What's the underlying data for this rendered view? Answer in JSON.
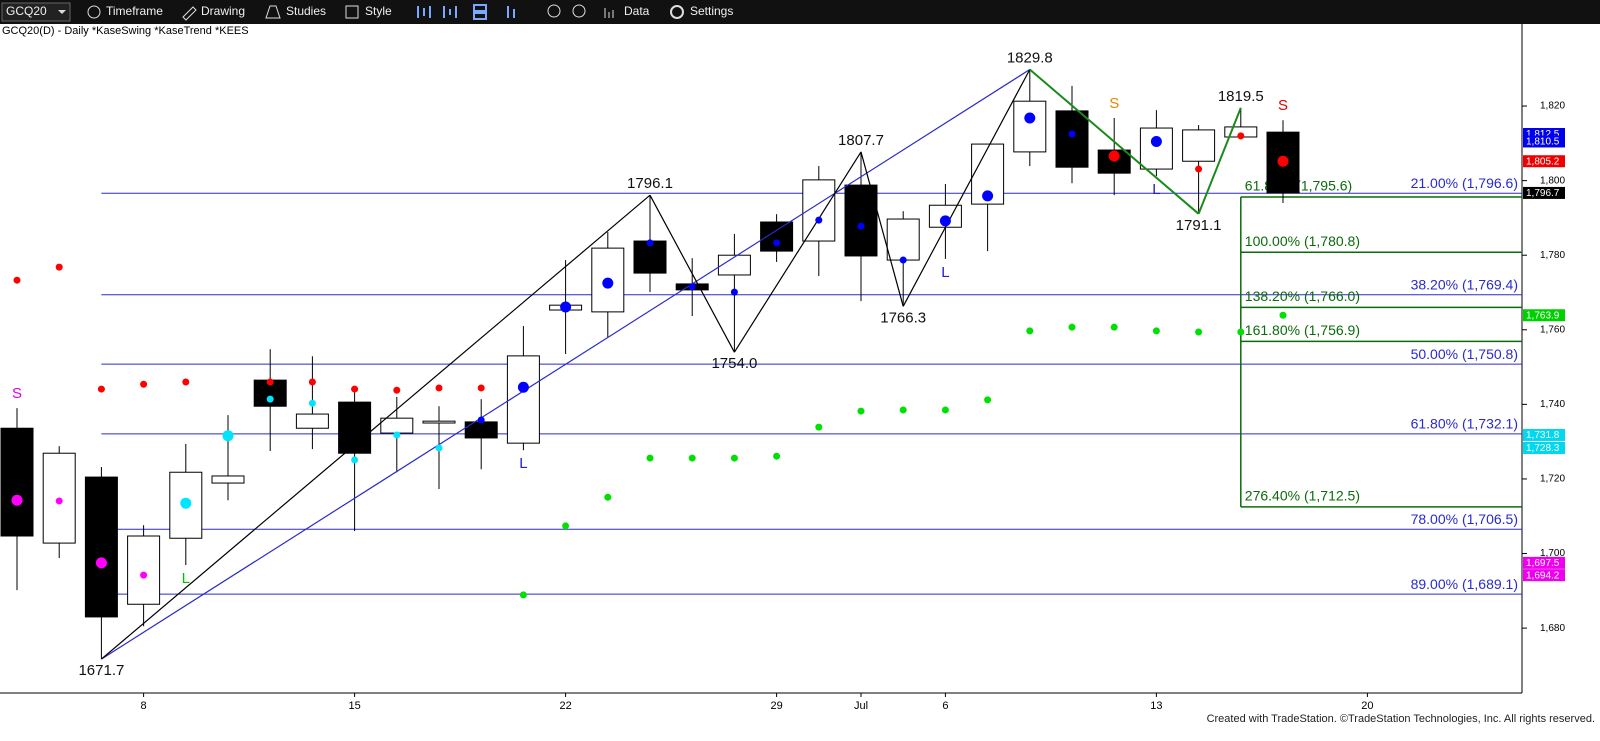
{
  "toolbar": {
    "symbol": "GCQ20",
    "menus": [
      "Timeframe",
      "Drawing",
      "Studies",
      "Style",
      "Data",
      "Settings"
    ]
  },
  "chart_data": {
    "type": "candlestick",
    "title": "GCQ20(D) - Daily  *KaseSwing  *KaseTrend  *KEES",
    "footer": "Created with TradeStation. ©TradeStation Technologies, Inc. All rights reserved.",
    "categories": [
      null,
      null,
      null,
      "8",
      null,
      null,
      null,
      null,
      "15",
      null,
      null,
      null,
      null,
      "22",
      null,
      null,
      null,
      null,
      "29",
      null,
      "Jul",
      null,
      "6",
      null,
      null,
      null,
      null,
      "13",
      null,
      null,
      null,
      null,
      "20"
    ],
    "open": [
      1733.6,
      1702.8,
      1720.5,
      1686.4,
      1704.1,
      1718.9,
      1746.5,
      1733.6,
      1740.6,
      1732.3,
      1735.0,
      1735.3,
      1729.6,
      1765.3,
      1764.8,
      1783.8,
      1772.3,
      1774.7,
      1788.9,
      1783.8,
      1798.8,
      1778.7,
      1787.5,
      1793.7,
      1807.7,
      1818.7,
      1808.2,
      1803.1,
      1805.2,
      1811.7,
      1813.0,
      null,
      null
    ],
    "high": [
      1739.0,
      1728.8,
      1723.2,
      1707.6,
      1729.4,
      1737.1,
      1754.8,
      1752.9,
      1744.9,
      1742.0,
      1739.5,
      1741.4,
      1761.0,
      1778.7,
      1786.2,
      1796.1,
      1779.2,
      1785.7,
      1791.0,
      1803.9,
      1807.7,
      1791.8,
      1799.1,
      1809.8,
      1829.8,
      1825.4,
      1816.8,
      1818.9,
      1814.9,
      1819.5,
      1816.2,
      null,
      null
    ],
    "low": [
      1690.2,
      1698.8,
      1671.7,
      1680.5,
      1696.9,
      1714.3,
      1727.5,
      1728.0,
      1706.0,
      1721.8,
      1717.3,
      1722.6,
      1727.7,
      1753.5,
      1758.0,
      1770.1,
      1763.7,
      1754.0,
      1778.2,
      1774.4,
      1767.7,
      1766.3,
      1779.0,
      1781.1,
      1803.9,
      1799.3,
      1796.1,
      1801.2,
      1791.1,
      1811.1,
      1794.0,
      null,
      null
    ],
    "close": [
      1704.7,
      1726.9,
      1683.0,
      1704.7,
      1721.8,
      1720.8,
      1739.5,
      1737.4,
      1726.9,
      1736.3,
      1735.5,
      1731.0,
      1753.0,
      1766.6,
      1781.9,
      1775.2,
      1770.7,
      1780.0,
      1781.1,
      1800.2,
      1779.8,
      1789.7,
      1793.4,
      1809.8,
      1821.3,
      1803.6,
      1802.0,
      1814.1,
      1813.6,
      1814.4,
      1796.7,
      null,
      null
    ],
    "up_color": "#ffffff",
    "down_color": "#000000",
    "ylim": [
      1662.6,
      1842.0
    ],
    "yticks": [
      {
        "value": 1680,
        "label": "1,680"
      },
      {
        "value": 1700,
        "label": "1,700"
      },
      {
        "value": 1720,
        "label": "1,720"
      },
      {
        "value": 1740,
        "label": "1,740"
      },
      {
        "value": 1760,
        "label": "1,760"
      },
      {
        "value": 1780,
        "label": "1,780"
      },
      {
        "value": 1800,
        "label": "1,800"
      },
      {
        "value": 1820,
        "label": "1,820"
      }
    ],
    "indicators": [
      {
        "color": "#ff0000",
        "marker": "small",
        "values": [
          1773.3,
          1776.8,
          1744.1,
          1745.4,
          1746.0,
          null,
          1746.0,
          1746.0,
          1744.1,
          1743.8,
          1744.4,
          1744.4,
          null,
          null,
          null,
          null,
          null,
          null,
          null,
          null,
          null,
          null,
          null,
          null,
          null,
          null,
          null,
          null,
          1803.1,
          1812.0,
          null,
          null,
          null
        ]
      },
      {
        "color": "#ff0000",
        "marker": "large",
        "values": [
          null,
          null,
          null,
          null,
          null,
          null,
          null,
          null,
          null,
          null,
          null,
          null,
          null,
          null,
          null,
          null,
          null,
          null,
          null,
          null,
          null,
          null,
          null,
          null,
          null,
          null,
          1806.6,
          null,
          null,
          null,
          1805.2,
          null,
          null
        ]
      },
      {
        "color": "#00e5ff",
        "marker": "small",
        "values": [
          null,
          null,
          null,
          null,
          null,
          null,
          1741.4,
          1740.3,
          1725.1,
          1731.8,
          1728.3,
          null,
          null,
          null,
          null,
          null,
          null,
          null,
          null,
          null,
          null,
          null,
          null,
          null,
          null,
          null,
          null,
          null,
          null,
          null,
          null,
          null,
          null
        ]
      },
      {
        "color": "#00e5ff",
        "marker": "large",
        "values": [
          null,
          null,
          null,
          null,
          1713.5,
          1731.6,
          null,
          null,
          null,
          null,
          null,
          null,
          null,
          null,
          null,
          null,
          null,
          null,
          null,
          null,
          null,
          null,
          null,
          null,
          null,
          null,
          null,
          null,
          null,
          null,
          null,
          null,
          null
        ]
      },
      {
        "color": "#ff00ff",
        "marker": "large",
        "values": [
          1714.3,
          null,
          1697.5,
          null,
          null,
          null,
          null,
          null,
          null,
          null,
          null,
          null,
          null,
          null,
          null,
          null,
          null,
          null,
          null,
          null,
          null,
          null,
          null,
          null,
          null,
          null,
          null,
          null,
          null,
          null,
          null,
          null,
          null
        ]
      },
      {
        "color": "#ff00ff",
        "marker": "small",
        "values": [
          null,
          1714.1,
          null,
          1694.2,
          null,
          null,
          null,
          null,
          null,
          null,
          null,
          null,
          null,
          null,
          null,
          null,
          null,
          null,
          null,
          null,
          null,
          null,
          null,
          null,
          null,
          null,
          null,
          null,
          null,
          null,
          null,
          null,
          null
        ]
      },
      {
        "color": "#0000ff",
        "marker": "large",
        "values": [
          null,
          null,
          null,
          null,
          null,
          null,
          null,
          null,
          null,
          null,
          null,
          null,
          1744.6,
          1766.1,
          1772.5,
          null,
          null,
          null,
          null,
          null,
          null,
          null,
          1789.2,
          1795.9,
          1816.8,
          null,
          null,
          1810.5,
          null,
          null,
          null,
          null,
          null
        ]
      },
      {
        "color": "#0000ff",
        "marker": "small",
        "values": [
          null,
          null,
          null,
          null,
          null,
          null,
          null,
          null,
          null,
          null,
          null,
          1735.8,
          null,
          null,
          null,
          1783.3,
          1771.5,
          1770.1,
          1783.3,
          1789.4,
          1787.8,
          1778.7,
          null,
          null,
          null,
          1812.5,
          null,
          null,
          null,
          null,
          null,
          null,
          null
        ]
      },
      {
        "color": "#00e000",
        "marker": "small",
        "values": [
          null,
          null,
          null,
          null,
          null,
          null,
          null,
          null,
          null,
          null,
          null,
          null,
          1688.9,
          1707.4,
          1715.1,
          1725.6,
          1725.6,
          1725.6,
          1726.1,
          1733.9,
          1738.2,
          1738.5,
          1738.5,
          1741.2,
          1759.7,
          1760.7,
          1760.7,
          1759.7,
          1759.4,
          1759.4,
          1763.9,
          null,
          null
        ]
      }
    ],
    "trendline": {
      "color": "#2a2acc",
      "values": [
        null,
        null,
        1671.7,
        null,
        null,
        null,
        null,
        null,
        null,
        null,
        null,
        null,
        null,
        null,
        null,
        null,
        null,
        null,
        null,
        null,
        null,
        null,
        null,
        null,
        1829.8,
        null,
        null,
        null,
        null,
        null,
        null,
        null,
        null
      ]
    },
    "swings": {
      "color": "#000000",
      "values": [
        null,
        null,
        1671.7,
        null,
        null,
        null,
        null,
        null,
        null,
        null,
        null,
        null,
        null,
        null,
        null,
        1796.1,
        null,
        1754.0,
        null,
        null,
        1807.7,
        1766.3,
        null,
        null,
        1829.8,
        null,
        null,
        null,
        null,
        null,
        null,
        null,
        null
      ],
      "value_labels": [
        null,
        null,
        "1671.7",
        null,
        null,
        null,
        null,
        null,
        null,
        null,
        null,
        null,
        null,
        null,
        null,
        "1796.1",
        null,
        "1754.0",
        null,
        null,
        "1807.7",
        "1766.3",
        null,
        null,
        "1829.8",
        null,
        null,
        null,
        null,
        null,
        null,
        null,
        null
      ]
    },
    "projection": {
      "color": "#1a8a1a",
      "values": [
        null,
        null,
        null,
        null,
        null,
        null,
        null,
        null,
        null,
        null,
        null,
        null,
        null,
        null,
        null,
        null,
        null,
        null,
        null,
        null,
        null,
        null,
        null,
        null,
        1829.8,
        null,
        null,
        null,
        1791.1,
        1819.5,
        null,
        null,
        null
      ],
      "value_labels": [
        null,
        null,
        null,
        null,
        null,
        null,
        null,
        null,
        null,
        null,
        null,
        null,
        null,
        null,
        null,
        null,
        null,
        null,
        null,
        null,
        null,
        null,
        null,
        null,
        null,
        null,
        null,
        null,
        "1791.1",
        "1819.5",
        null,
        null,
        null
      ]
    },
    "retracements": {
      "color": "#2a2acc",
      "levels": [
        {
          "value": 1796.6,
          "label": "21.00% (1,796.6)"
        },
        {
          "value": 1769.4,
          "label": "38.20% (1,769.4)"
        },
        {
          "value": 1750.8,
          "label": "50.00% (1,750.8)"
        },
        {
          "value": 1732.1,
          "label": "61.80% (1,732.1)"
        },
        {
          "value": 1706.5,
          "label": "78.00% (1,706.5)"
        },
        {
          "value": 1689.1,
          "label": "89.00% (1,689.1)"
        }
      ]
    },
    "extensions": {
      "color": "#0b6b0b",
      "levels": [
        {
          "value": 1795.6,
          "label": "61.80% (1,795.6)"
        },
        {
          "value": 1780.8,
          "label": "100.00% (1,780.8)"
        },
        {
          "value": 1766.0,
          "label": "138.20% (1,766.0)"
        },
        {
          "value": 1756.9,
          "label": "161.80% (1,756.9)"
        },
        {
          "value": 1712.5,
          "label": "276.40% (1,712.5)"
        }
      ]
    },
    "signals": [
      {
        "label": "S",
        "color": "#e000e0",
        "position": "above"
      },
      null,
      null,
      null,
      {
        "label": "L",
        "color": "#00c000",
        "position": "below"
      },
      null,
      null,
      null,
      null,
      null,
      null,
      null,
      {
        "label": "L",
        "color": "#2020d0",
        "position": "below"
      },
      null,
      null,
      null,
      null,
      null,
      null,
      null,
      null,
      null,
      {
        "label": "L",
        "color": "#2020d0",
        "position": "below"
      },
      null,
      null,
      null,
      {
        "label": "S",
        "color": "#e08a00",
        "position": "above"
      },
      {
        "label": "L",
        "color": "#2020d0",
        "position": "below"
      },
      null,
      null,
      {
        "label": "S",
        "color": "#e00000",
        "position": "above"
      },
      null,
      null
    ],
    "price_labels": [
      {
        "value": 1812.5,
        "label": "1,812.5",
        "color": "#0000ee"
      },
      {
        "value": 1810.5,
        "label": "1,810.5",
        "color": "#0000ee"
      },
      {
        "value": 1805.2,
        "label": "1,805.2",
        "color": "#ee0000"
      },
      {
        "value": 1796.7,
        "label": "1,796.7",
        "color": "#000000"
      },
      {
        "value": 1763.9,
        "label": "1,763.9",
        "color": "#00d000"
      },
      {
        "value": 1731.8,
        "label": "1,731.8",
        "color": "#00d8f0"
      },
      {
        "value": 1728.3,
        "label": "1,728.3",
        "color": "#00d8f0"
      },
      {
        "value": 1697.5,
        "label": "1,697.5",
        "color": "#ee00ee"
      },
      {
        "value": 1694.2,
        "label": "1,694.2",
        "color": "#ee00ee"
      }
    ]
  }
}
